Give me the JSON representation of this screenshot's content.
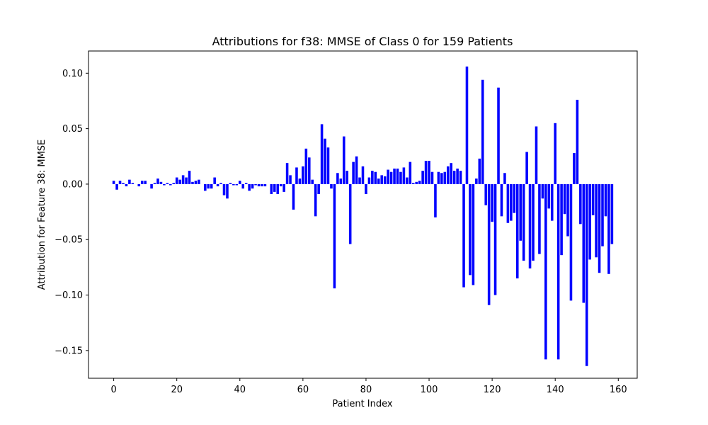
{
  "chart_data": {
    "type": "bar",
    "title": "Attributions for f38: MMSE of Class 0 for 159 Patients",
    "xlabel": "Patient Index",
    "ylabel": "Attribution for Feature 38: MMSE",
    "xlim": [
      -8,
      166
    ],
    "ylim": [
      -0.175,
      0.12
    ],
    "xticks": [
      0,
      20,
      40,
      60,
      80,
      100,
      120,
      140,
      160
    ],
    "yticks": [
      -0.15,
      -0.1,
      -0.05,
      0.0,
      0.05,
      0.1
    ],
    "xtick_labels": [
      "0",
      "20",
      "40",
      "60",
      "80",
      "100",
      "120",
      "140",
      "160"
    ],
    "ytick_labels": [
      "−0.15",
      "−0.10",
      "−0.05",
      "0.00",
      "0.05",
      "0.10"
    ],
    "bar_color": "#0000ff",
    "grid": false,
    "x": [
      0,
      1,
      2,
      3,
      4,
      5,
      6,
      7,
      8,
      9,
      10,
      11,
      12,
      13,
      14,
      15,
      16,
      17,
      18,
      19,
      20,
      21,
      22,
      23,
      24,
      25,
      26,
      27,
      28,
      29,
      30,
      31,
      32,
      33,
      34,
      35,
      36,
      37,
      38,
      39,
      40,
      41,
      42,
      43,
      44,
      45,
      46,
      47,
      48,
      49,
      50,
      51,
      52,
      53,
      54,
      55,
      56,
      57,
      58,
      59,
      60,
      61,
      62,
      63,
      64,
      65,
      66,
      67,
      68,
      69,
      70,
      71,
      72,
      73,
      74,
      75,
      76,
      77,
      78,
      79,
      80,
      81,
      82,
      83,
      84,
      85,
      86,
      87,
      88,
      89,
      90,
      91,
      92,
      93,
      94,
      95,
      96,
      97,
      98,
      99,
      100,
      101,
      102,
      103,
      104,
      105,
      106,
      107,
      108,
      109,
      110,
      111,
      112,
      113,
      114,
      115,
      116,
      117,
      118,
      119,
      120,
      121,
      122,
      123,
      124,
      125,
      126,
      127,
      128,
      129,
      130,
      131,
      132,
      133,
      134,
      135,
      136,
      137,
      138,
      139,
      140,
      141,
      142,
      143,
      144,
      145,
      146,
      147,
      148,
      149,
      150,
      151,
      152,
      153,
      154,
      155,
      156,
      157,
      158
    ],
    "values": [
      0.003,
      -0.005,
      0.003,
      0.001,
      -0.002,
      0.004,
      0.001,
      0.0,
      -0.002,
      0.003,
      0.003,
      0.0,
      -0.004,
      0.001,
      0.005,
      0.002,
      -0.001,
      0.001,
      -0.001,
      0.001,
      0.006,
      0.004,
      0.008,
      0.006,
      0.012,
      0.002,
      0.003,
      0.004,
      0.0,
      -0.006,
      -0.004,
      -0.004,
      0.006,
      -0.002,
      0.001,
      -0.01,
      -0.013,
      0.001,
      -0.001,
      -0.001,
      0.003,
      -0.004,
      0.001,
      -0.006,
      -0.004,
      -0.001,
      -0.002,
      -0.002,
      -0.002,
      0.0,
      -0.009,
      -0.007,
      -0.009,
      -0.002,
      -0.007,
      0.019,
      0.008,
      -0.023,
      0.015,
      0.005,
      0.016,
      0.032,
      0.024,
      0.004,
      -0.029,
      -0.009,
      0.054,
      0.041,
      0.033,
      -0.004,
      -0.094,
      0.01,
      0.005,
      0.043,
      0.012,
      -0.054,
      0.02,
      0.025,
      0.006,
      0.016,
      -0.009,
      0.006,
      0.012,
      0.011,
      0.005,
      0.008,
      0.007,
      0.013,
      0.011,
      0.014,
      0.014,
      0.011,
      0.015,
      0.006,
      0.02,
      0.001,
      0.002,
      0.003,
      0.012,
      0.021,
      0.021,
      0.011,
      -0.03,
      0.011,
      0.01,
      0.011,
      0.016,
      0.019,
      0.012,
      0.014,
      0.012,
      -0.093,
      0.106,
      -0.082,
      -0.091,
      0.005,
      0.023,
      0.094,
      -0.019,
      -0.109,
      -0.034,
      -0.1,
      0.087,
      -0.029,
      0.01,
      -0.035,
      -0.033,
      -0.026,
      -0.085,
      -0.051,
      -0.069,
      0.029,
      -0.076,
      -0.069,
      0.052,
      -0.063,
      -0.013,
      -0.158,
      -0.022,
      -0.033,
      0.055,
      -0.158,
      -0.064,
      -0.027,
      -0.047,
      -0.105,
      0.028,
      0.076,
      -0.036,
      -0.107,
      -0.164,
      -0.068,
      -0.028,
      -0.066,
      -0.08,
      -0.056,
      -0.029,
      -0.081,
      -0.054
    ]
  }
}
